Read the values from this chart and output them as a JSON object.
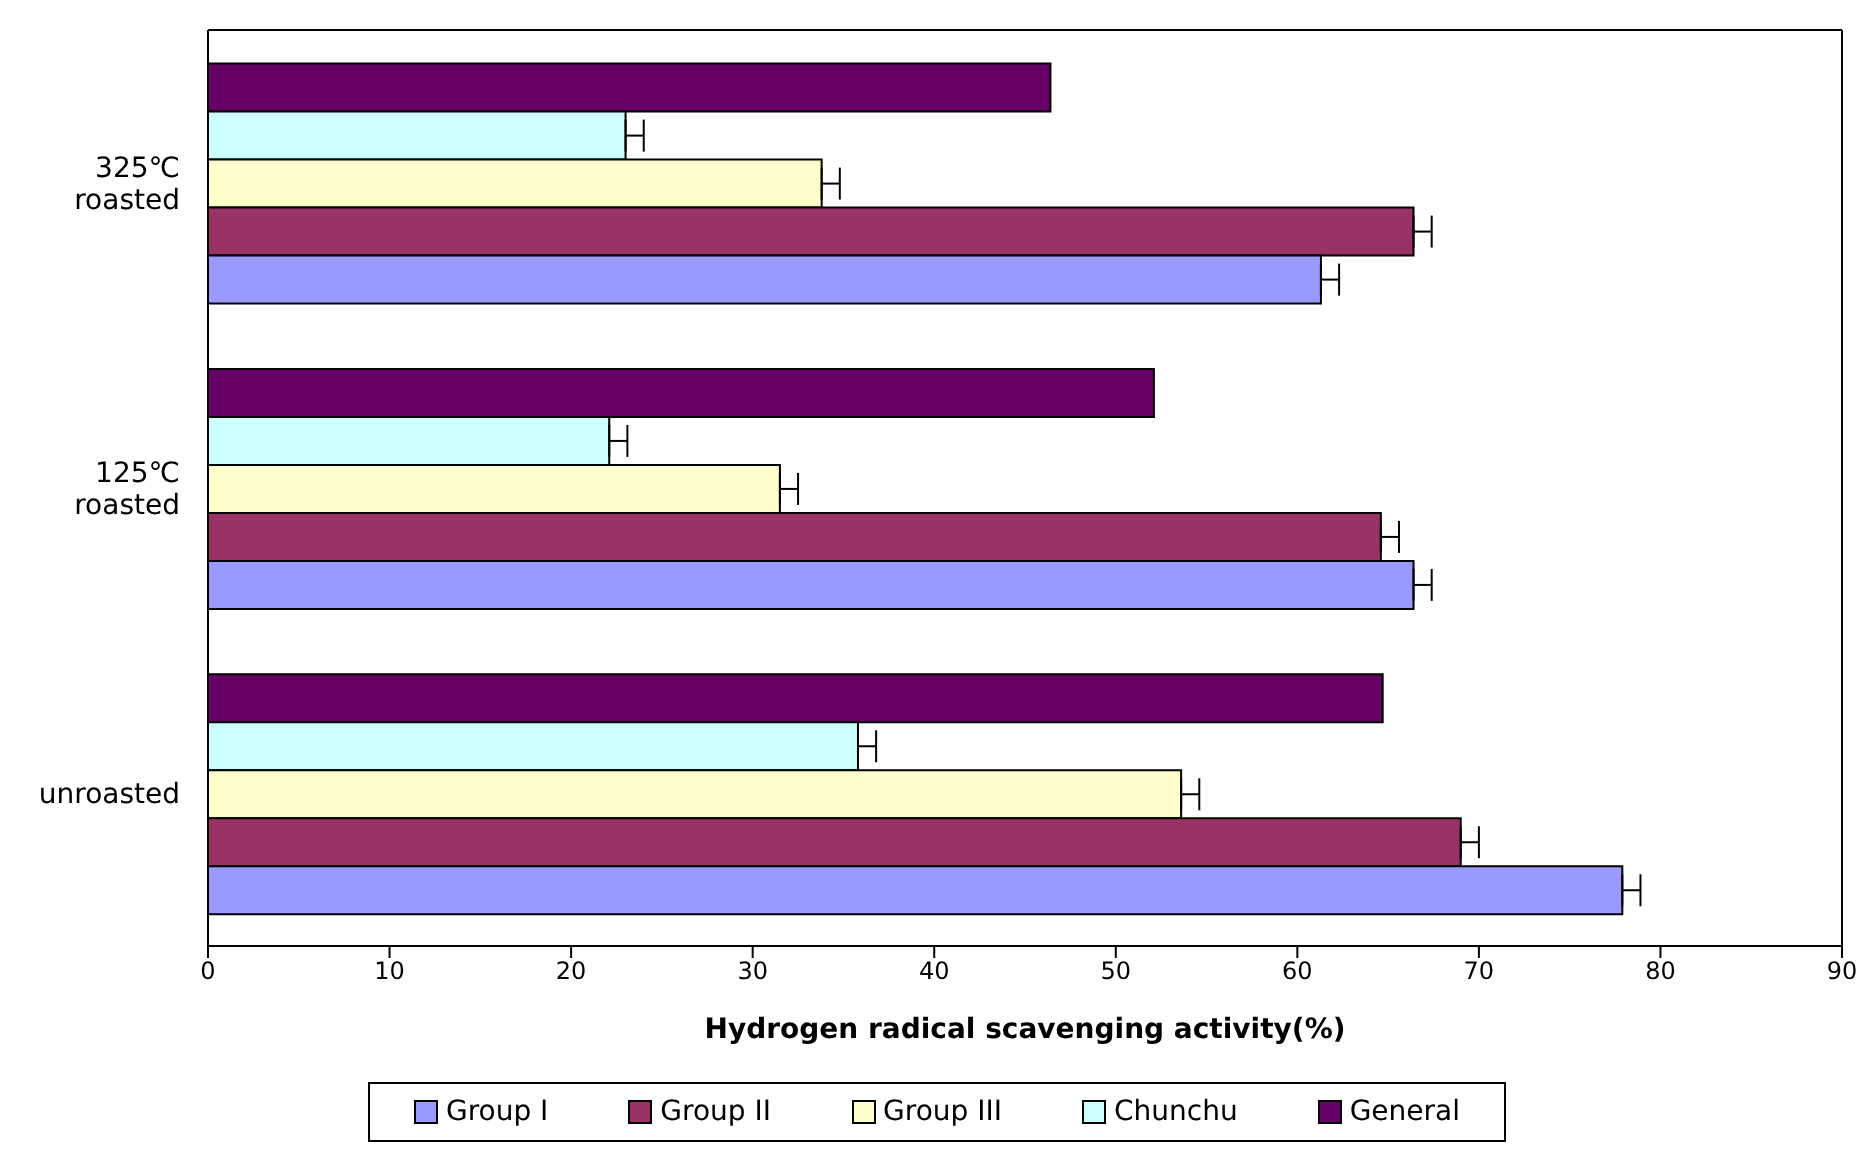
{
  "chart_data": {
    "type": "bar",
    "orientation": "horizontal",
    "xlabel": "Hydrogen radical scavenging activity(%)",
    "categories": [
      "325℃ roasted",
      "125℃ roasted",
      "unroasted"
    ],
    "series": [
      {
        "name": "Group I",
        "color": "#9999ff",
        "values": [
          61.3,
          66.4,
          77.9
        ],
        "errors": [
          [
            61.3,
            62.3
          ],
          [
            66.4,
            67.4
          ],
          [
            77.9,
            78.9
          ]
        ]
      },
      {
        "name": "Group II",
        "color": "#993366",
        "values": [
          66.4,
          64.6,
          69.0
        ],
        "errors": [
          [
            66.4,
            67.4
          ],
          [
            64.6,
            65.6
          ],
          [
            69.0,
            70.0
          ]
        ]
      },
      {
        "name": "Group III",
        "color": "#ffffcc",
        "values": [
          33.8,
          31.5,
          53.6
        ],
        "errors": [
          [
            33.8,
            34.8
          ],
          [
            31.5,
            32.5
          ],
          [
            53.6,
            54.6
          ]
        ]
      },
      {
        "name": "Chunchu",
        "color": "#ccffff",
        "values": [
          23.0,
          22.1,
          35.8
        ],
        "errors": [
          [
            23.0,
            24.0
          ],
          [
            22.1,
            23.1
          ],
          [
            35.8,
            36.8
          ]
        ]
      },
      {
        "name": "General",
        "color": "#660066",
        "values": [
          46.4,
          52.1,
          64.7
        ]
      }
    ],
    "xlim": [
      0,
      90
    ],
    "xticks": [
      0,
      10,
      20,
      30,
      40,
      50,
      60,
      70,
      80,
      90
    ],
    "grid": false,
    "legend": "bottom"
  }
}
